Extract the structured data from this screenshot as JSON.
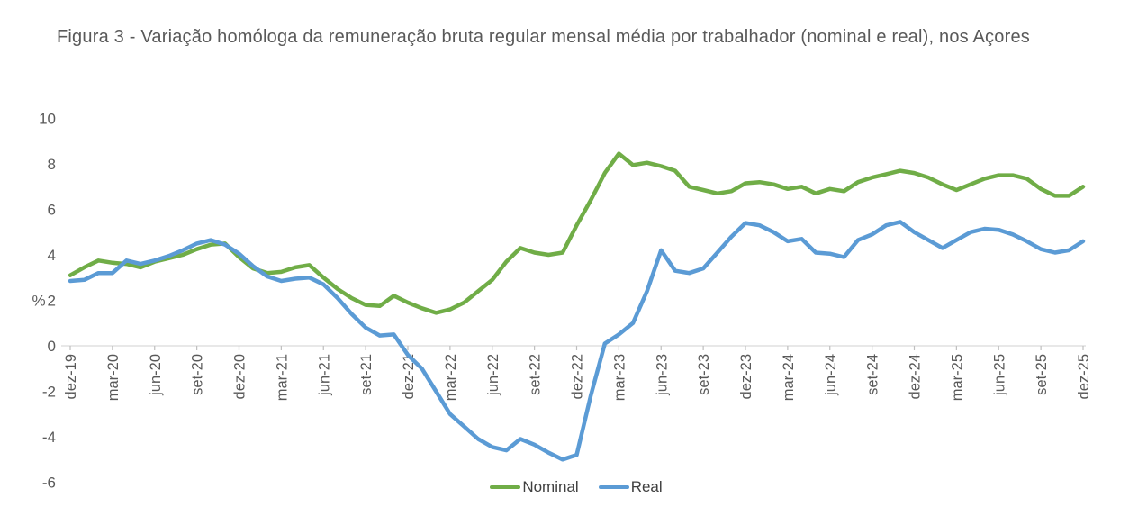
{
  "title": "Figura 3 - Variação homóloga da remuneração bruta regular mensal média por trabalhador (nominal e real), nos Açores",
  "colors": {
    "nominal_green": "#70AD47",
    "real_blue": "#5B9BD5",
    "axis_line": "#D9D9D9",
    "tick_text": "#595959",
    "title_text": "#595959",
    "legend_text": "#404040"
  },
  "chart_data": {
    "type": "line",
    "title": "Figura 3 - Variação homóloga da remuneração bruta regular mensal média por trabalhador (nominal e real), nos Açores",
    "xlabel": "",
    "ylabel": "%",
    "ylim": [
      -6,
      10
    ],
    "y_ticks": [
      10,
      8,
      6,
      4,
      2,
      0,
      -2,
      -4,
      -6
    ],
    "grid": false,
    "legend_position": "bottom-center",
    "x_unit": "month",
    "x_start": "dez-19",
    "x_end": "dez-25",
    "x_tick_every_months": 3,
    "x_tick_labels": [
      "dez-19",
      "mar-20",
      "jun-20",
      "set-20",
      "dez-20",
      "mar-21",
      "jun-21",
      "set-21",
      "dez-21",
      "mar-22",
      "jun-22",
      "set-22",
      "dez-22",
      "mar-23",
      "jun-23",
      "set-23",
      "dez-23",
      "mar-24",
      "jun-24",
      "set-24",
      "dez-24",
      "mar-25",
      "jun-25",
      "set-25",
      "dez-25"
    ],
    "series": [
      {
        "name": "Nominal",
        "color": "#70AD47",
        "values": [
          3.1,
          3.45,
          3.75,
          3.65,
          3.6,
          3.45,
          3.7,
          3.85,
          4.0,
          4.25,
          4.45,
          4.5,
          3.9,
          3.4,
          3.2,
          3.25,
          3.45,
          3.55,
          3.0,
          2.5,
          2.1,
          1.8,
          1.75,
          2.2,
          1.9,
          1.65,
          1.45,
          1.6,
          1.9,
          2.4,
          2.9,
          3.7,
          4.3,
          4.1,
          4.0,
          4.1,
          5.3,
          6.4,
          7.6,
          8.45,
          7.95,
          8.05,
          7.9,
          7.7,
          7.0,
          6.85,
          6.7,
          6.8,
          7.15,
          7.2,
          7.1,
          6.9,
          7.0,
          6.7,
          6.9,
          6.8,
          7.2,
          7.4,
          7.55,
          7.7,
          7.6,
          7.4,
          7.1,
          6.85,
          7.1,
          7.35,
          7.5,
          7.5,
          7.35,
          6.9,
          6.6,
          6.6,
          7.0
        ]
      },
      {
        "name": "Real",
        "color": "#5B9BD5",
        "values": [
          2.85,
          2.9,
          3.2,
          3.2,
          3.75,
          3.6,
          3.75,
          3.95,
          4.2,
          4.5,
          4.65,
          4.45,
          4.05,
          3.5,
          3.05,
          2.85,
          2.95,
          3.0,
          2.7,
          2.1,
          1.4,
          0.8,
          0.45,
          0.5,
          -0.4,
          -1.0,
          -2.0,
          -3.0,
          -3.55,
          -4.1,
          -4.45,
          -4.6,
          -4.1,
          -4.35,
          -4.7,
          -5.0,
          -4.8,
          -2.2,
          0.1,
          0.5,
          1.0,
          2.4,
          4.2,
          3.3,
          3.2,
          3.4,
          4.1,
          4.8,
          5.4,
          5.3,
          5.0,
          4.6,
          4.7,
          4.1,
          4.05,
          3.9,
          4.65,
          4.9,
          5.3,
          5.45,
          5.0,
          4.65,
          4.3,
          4.65,
          5.0,
          5.15,
          5.1,
          4.9,
          4.6,
          4.25,
          4.1,
          4.2,
          4.6
        ]
      }
    ]
  }
}
